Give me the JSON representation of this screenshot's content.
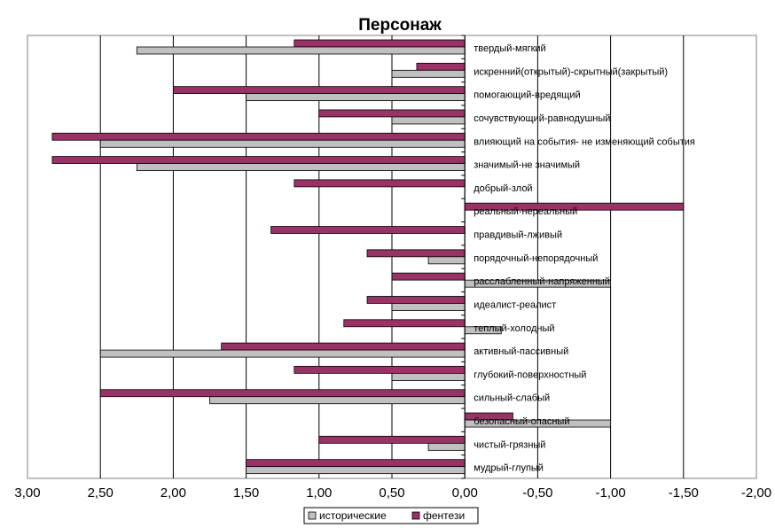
{
  "chart_data": {
    "type": "bar",
    "orientation": "horizontal",
    "title": "Персонаж",
    "xlabel": "",
    "ylabel": "",
    "xlim": [
      3.0,
      -2.0
    ],
    "x_reversed": true,
    "x_ticks": [
      "3,00",
      "2,50",
      "2,00",
      "1,50",
      "1,00",
      "0,50",
      "0,00",
      "-0,50",
      "-1,00",
      "-1,50",
      "-2,00"
    ],
    "grid": "vertical",
    "legend_position": "bottom",
    "categories": [
      "твердый-мягкий",
      "искренний(открытый)-скрытный(закрытый)",
      "помогающий-вредящий",
      "сочувствующий-равнодушный",
      "влияющий на события- не изменяющий события",
      "значимый-не значимый",
      "добрый-злой",
      "реальный-нереальный",
      "правдивый-лживый",
      "порядочный-непорядочный",
      "расслабленный-напряженный",
      "идеалист-реалист",
      "теплый-холодный",
      "активный-пассивный",
      "глубокий-поверхностный",
      "сильный-слабый",
      "безопасный-опасный",
      "чистый-грязный",
      "мудрый-глупый"
    ],
    "series": [
      {
        "name": "исторические",
        "color": "#c0c0c0",
        "values": [
          2.25,
          0.5,
          1.5,
          0.5,
          2.5,
          2.25,
          0.0,
          0.0,
          0.0,
          0.25,
          -1.0,
          0.5,
          -0.25,
          2.5,
          0.5,
          1.75,
          -1.0,
          0.25,
          1.5
        ]
      },
      {
        "name": "фентези",
        "color": "#993366",
        "values": [
          1.17,
          0.33,
          2.0,
          1.0,
          2.83,
          2.83,
          1.17,
          -1.5,
          1.33,
          0.67,
          0.5,
          0.67,
          0.83,
          1.67,
          1.17,
          2.5,
          -0.33,
          1.0,
          1.5
        ]
      }
    ]
  }
}
